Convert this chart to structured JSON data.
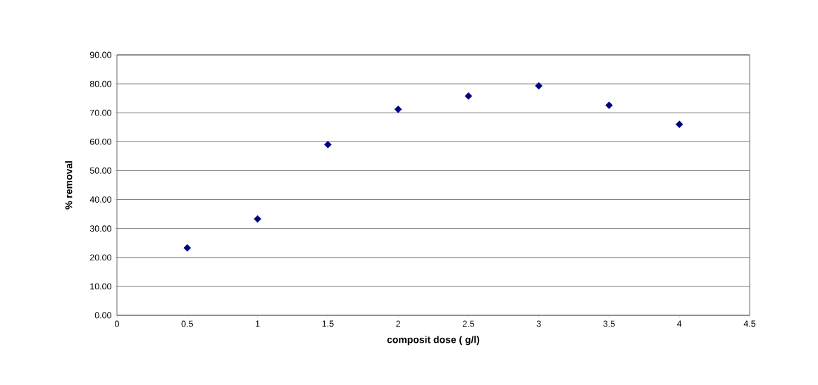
{
  "chart_data": {
    "type": "scatter",
    "xlabel": "composit dose ( g/l)",
    "ylabel": "%  removal",
    "x": [
      0.5,
      1,
      1.5,
      2,
      2.5,
      3,
      3.5,
      4
    ],
    "series": [
      {
        "color": "#000080",
        "values": [
          23.3,
          33.3,
          59.0,
          71.2,
          75.8,
          79.3,
          72.6,
          66.0
        ]
      }
    ],
    "xlim": [
      0,
      4.5
    ],
    "xticks": [
      0,
      0.5,
      1,
      1.5,
      2,
      2.5,
      3,
      3.5,
      4,
      4.5
    ],
    "ylim": [
      0,
      90
    ],
    "yticks": [
      {
        "value": 0,
        "label": "0.00"
      },
      {
        "value": 10,
        "label": "10.00"
      },
      {
        "value": 20,
        "label": "20.00"
      },
      {
        "value": 30,
        "label": "30.00"
      },
      {
        "value": 40,
        "label": "40.00"
      },
      {
        "value": 50,
        "label": "50.00"
      },
      {
        "value": 60,
        "label": "60.00"
      },
      {
        "value": 70,
        "label": "70.00"
      },
      {
        "value": 80,
        "label": "80.00"
      },
      {
        "value": 90,
        "label": "90.00"
      }
    ],
    "grid": "y",
    "marker": "diamond"
  }
}
